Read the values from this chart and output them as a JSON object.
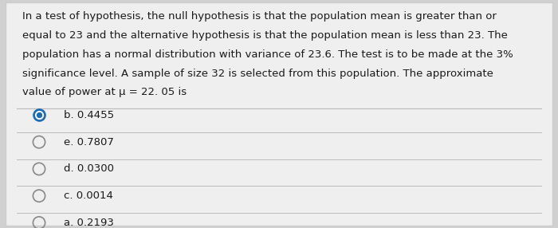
{
  "question_text_lines": [
    "In a test of hypothesis, the null hypothesis is that the population mean is greater than or",
    "equal to 23 and the alternative hypothesis is that the population mean is less than 23. The",
    "population has a normal distribution with variance of 23.6. The test is to be made at the 3%",
    "significance level. A sample of size 32 is selected from this population. The approximate",
    "value of power at μ = 22. 05 is"
  ],
  "options": [
    {
      "label": "b. 0.4455",
      "selected": true
    },
    {
      "label": "e. 0.7807",
      "selected": false
    },
    {
      "label": "d. 0.0300",
      "selected": false
    },
    {
      "label": "c. 0.0014",
      "selected": false
    },
    {
      "label": "a. 0.2193",
      "selected": false
    }
  ],
  "bg_color": "#d0d0d0",
  "card_color": "#efefef",
  "text_color": "#1a1a1a",
  "option_text_color": "#1a1a1a",
  "selected_circle_color": "#1a6bb5",
  "unselected_circle_color": "#888888",
  "divider_color": "#bbbbbb",
  "font_size_question": 9.5,
  "font_size_option": 9.5
}
